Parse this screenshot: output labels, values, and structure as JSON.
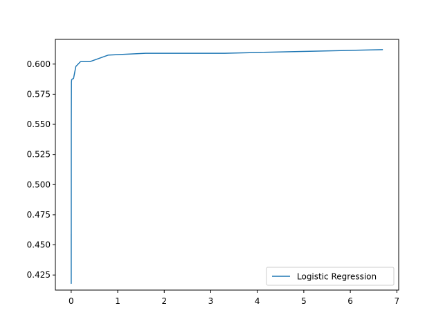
{
  "chart_data": {
    "type": "line",
    "title": "",
    "xlabel": "",
    "ylabel": "",
    "xlim": [
      -0.34,
      7.04
    ],
    "ylim": [
      0.4125,
      0.6205
    ],
    "xticks": [
      0,
      1,
      2,
      3,
      4,
      5,
      6,
      7
    ],
    "xtick_labels": [
      "0",
      "1",
      "2",
      "3",
      "4",
      "5",
      "6",
      "7"
    ],
    "yticks": [
      0.425,
      0.45,
      0.475,
      0.5,
      0.525,
      0.55,
      0.575,
      0.6
    ],
    "ytick_labels": [
      "0.425",
      "0.450",
      "0.475",
      "0.500",
      "0.525",
      "0.550",
      "0.575",
      "0.600"
    ],
    "grid": false,
    "legend_position": "lower-right",
    "series": [
      {
        "name": "Logistic Regression",
        "color": "#1f77b4",
        "x": [
          0.0001,
          0.0002,
          0.0005,
          0.001,
          0.002,
          0.005,
          0.01,
          0.02,
          0.05,
          0.1,
          0.2,
          0.4,
          0.8,
          1.6,
          3.3,
          6.7
        ],
        "y": [
          0.418,
          0.459,
          0.418,
          0.459,
          0.55,
          0.585,
          0.587,
          0.5875,
          0.588,
          0.598,
          0.602,
          0.602,
          0.6075,
          0.609,
          0.609,
          0.612
        ]
      }
    ]
  }
}
